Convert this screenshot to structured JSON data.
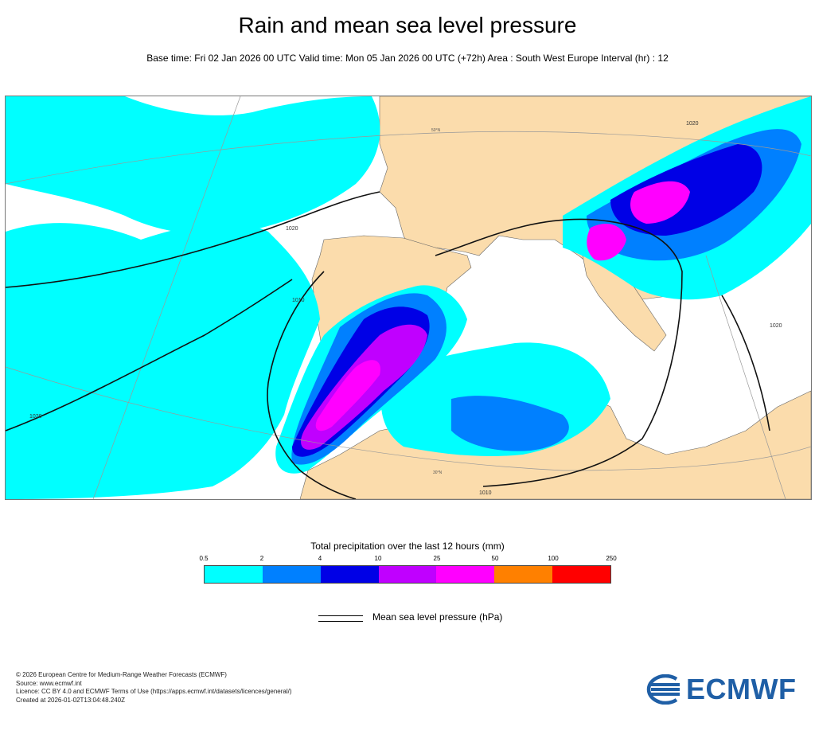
{
  "title": "Rain and mean sea level pressure",
  "subtitle": "Base time: Fri 02 Jan 2026 00 UTC Valid time: Mon 05 Jan 2026 00 UTC (+72h) Area : South West Europe Interval (hr) : 12",
  "map": {
    "isobar_labels": [
      "1020",
      "1010",
      "1020",
      "1020",
      "1010",
      "1020"
    ],
    "latitude_labels": [
      "50°N",
      "30°N"
    ]
  },
  "legend": {
    "title": "Total precipitation over the last 12 hours (mm)",
    "ticks": [
      "0.5",
      "2",
      "4",
      "10",
      "25",
      "50",
      "100",
      "250"
    ],
    "colors": [
      "#00ffff",
      "#0080ff",
      "#0000e6",
      "#c000ff",
      "#ff00ff",
      "#ff8000",
      "#ff0000"
    ]
  },
  "mslp_legend": {
    "label": "Mean sea level pressure (hPa)"
  },
  "footer": {
    "line1": "© 2026 European Centre for Medium-Range Weather Forecasts (ECMWF)",
    "line2": "Source: www.ecmwf.int",
    "line3": "Licence: CC BY 4.0 and ECMWF Terms of Use (https://apps.ecmwf.int/datasets/licences/general/)",
    "line4": "Created at 2026-01-02T13:04:48.240Z"
  },
  "logo": {
    "text": "ECMWF",
    "color": "#1f5fa6"
  }
}
